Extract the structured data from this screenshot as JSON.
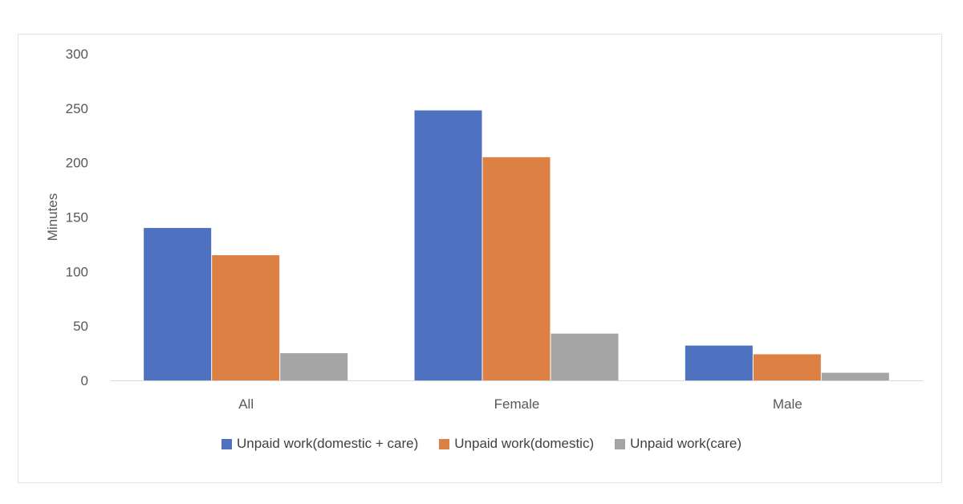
{
  "chart_data": {
    "type": "bar",
    "title": "",
    "xlabel": "",
    "ylabel": "Minutes",
    "ylim": [
      0,
      300
    ],
    "yticks": [
      0,
      50,
      100,
      150,
      200,
      250,
      300
    ],
    "categories": [
      "All",
      "Female",
      "Male"
    ],
    "series": [
      {
        "name": "Unpaid work(domestic + care)",
        "color": "#4e71c0",
        "values": [
          140,
          248,
          32
        ]
      },
      {
        "name": "Unpaid work(domestic)",
        "color": "#dd8043",
        "values": [
          115,
          205,
          24
        ]
      },
      {
        "name": "Unpaid work(care)",
        "color": "#a5a5a5",
        "values": [
          25,
          43,
          7
        ]
      }
    ],
    "grid": false,
    "legend_position": "bottom"
  }
}
